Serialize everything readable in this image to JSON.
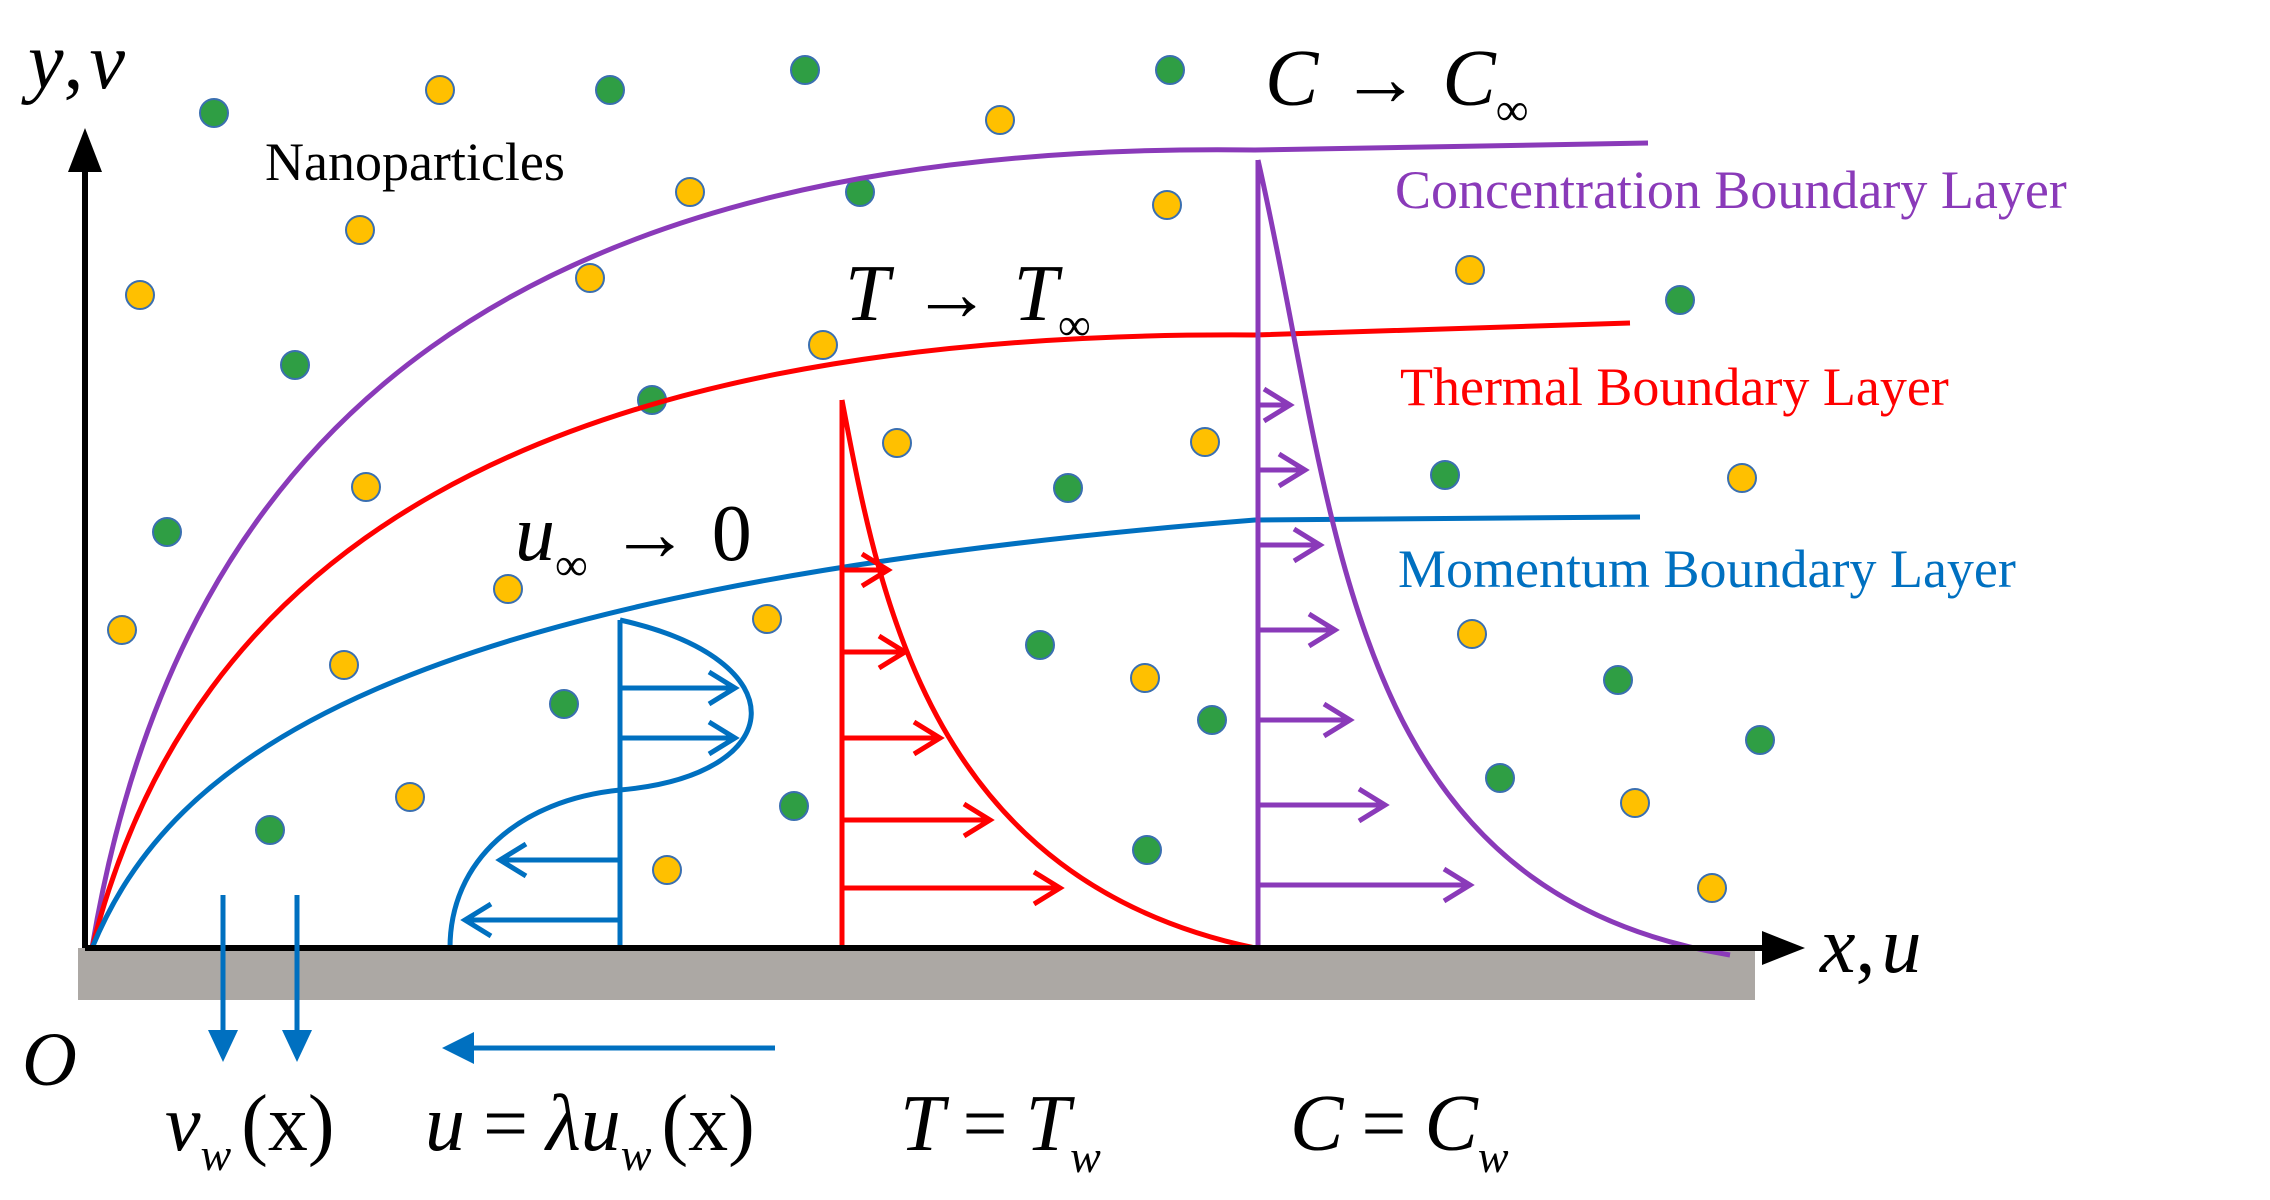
{
  "labels": {
    "nanoparticles": "Nanoparticles",
    "concentration_layer": "Concentration Boundary Layer",
    "thermal_layer": "Thermal Boundary Layer",
    "momentum_layer": "Momentum Boundary Layer"
  },
  "axes": {
    "y_axis": {
      "var1": "y",
      "comma": ",",
      "var2": "v"
    },
    "x_axis": {
      "var1": "x",
      "comma": ",",
      "var2": "u"
    },
    "origin": "O"
  },
  "conditions_free_stream": {
    "concentration": {
      "lhs": "C",
      "arrow": "→",
      "rhs": "C",
      "sub": "∞"
    },
    "temperature": {
      "lhs": "T",
      "arrow": "→",
      "rhs": "T",
      "sub": "∞"
    },
    "velocity": {
      "lhs": "u",
      "sub": "∞",
      "arrow": "→",
      "rhs": "0"
    }
  },
  "conditions_wall": {
    "suction": {
      "var": "v",
      "sub": "w",
      "arg": "(x)"
    },
    "stretching": {
      "lhs": "u",
      "eq": "=",
      "coef": "λu",
      "sub": "w",
      "arg": "(x)"
    },
    "temperature": {
      "lhs": "T",
      "eq": "=",
      "rhs": "T",
      "sub": "w"
    },
    "concentration": {
      "lhs": "C",
      "eq": "=",
      "rhs": "C",
      "sub": "w"
    }
  },
  "colors": {
    "concentration": "#8a3ab9",
    "thermal": "#ff0000",
    "momentum": "#0070c0",
    "axis": "#000000",
    "wall": "#aca8a4",
    "particle_yellow": "#ffc000",
    "particle_green": "#2f9e44",
    "particle_outline": "#3a6fb0"
  },
  "icons": {
    "particle_yellow": "yellow-nanoparticle-dot",
    "particle_green": "green-nanoparticle-dot",
    "profile_arrow": "arrowhead-icon"
  }
}
